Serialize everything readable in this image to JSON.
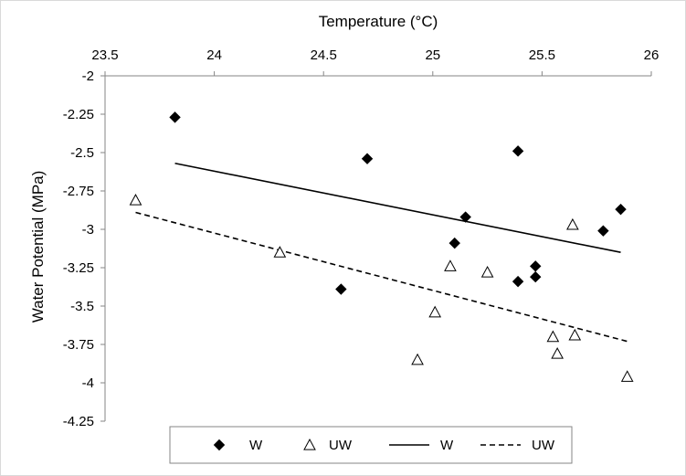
{
  "chart_data": {
    "type": "scatter",
    "xlabel": "Temperature (°C)",
    "ylabel": "Water Potential (MPa)",
    "x_axis_position": "top",
    "xlim": [
      23.5,
      26
    ],
    "ylim": [
      -4.25,
      -2
    ],
    "x_ticks": [
      23.5,
      24,
      24.5,
      25,
      25.5,
      26
    ],
    "y_ticks": [
      -2,
      -2.25,
      -2.5,
      -2.75,
      -3,
      -3.25,
      -3.5,
      -3.75,
      -4,
      -4.25
    ],
    "x_tick_labels": [
      "23.5",
      "24",
      "24.5",
      "25",
      "25.5",
      "26"
    ],
    "y_tick_labels": [
      "-2",
      "-2.25",
      "-2.5",
      "-2.75",
      "-3",
      "-3.25",
      "-3.5",
      "-3.75",
      "-4",
      "-4.25"
    ],
    "grid": false,
    "legend_position": "bottom",
    "series": [
      {
        "name": "W",
        "kind": "points",
        "marker": "diamond-filled",
        "color": "#000000",
        "points": [
          [
            23.82,
            -2.27
          ],
          [
            24.58,
            -3.39
          ],
          [
            24.7,
            -2.54
          ],
          [
            25.1,
            -3.09
          ],
          [
            25.15,
            -2.92
          ],
          [
            25.39,
            -2.49
          ],
          [
            25.39,
            -3.34
          ],
          [
            25.47,
            -3.24
          ],
          [
            25.47,
            -3.31
          ],
          [
            25.78,
            -3.01
          ],
          [
            25.86,
            -2.87
          ]
        ]
      },
      {
        "name": "UW",
        "kind": "points",
        "marker": "triangle-open",
        "color": "#000000",
        "points": [
          [
            23.64,
            -2.81
          ],
          [
            24.3,
            -3.15
          ],
          [
            24.93,
            -3.85
          ],
          [
            25.01,
            -3.54
          ],
          [
            25.08,
            -3.24
          ],
          [
            25.25,
            -3.28
          ],
          [
            25.55,
            -3.7
          ],
          [
            25.57,
            -3.81
          ],
          [
            25.64,
            -2.97
          ],
          [
            25.65,
            -3.69
          ],
          [
            25.89,
            -3.96
          ]
        ]
      },
      {
        "name": "W",
        "kind": "trendline",
        "style": "solid",
        "color": "#000000",
        "points": [
          [
            23.82,
            -2.57
          ],
          [
            25.86,
            -3.15
          ]
        ]
      },
      {
        "name": "UW",
        "kind": "trendline",
        "style": "dashed",
        "color": "#000000",
        "points": [
          [
            23.64,
            -2.89
          ],
          [
            25.89,
            -3.73
          ]
        ]
      }
    ]
  }
}
